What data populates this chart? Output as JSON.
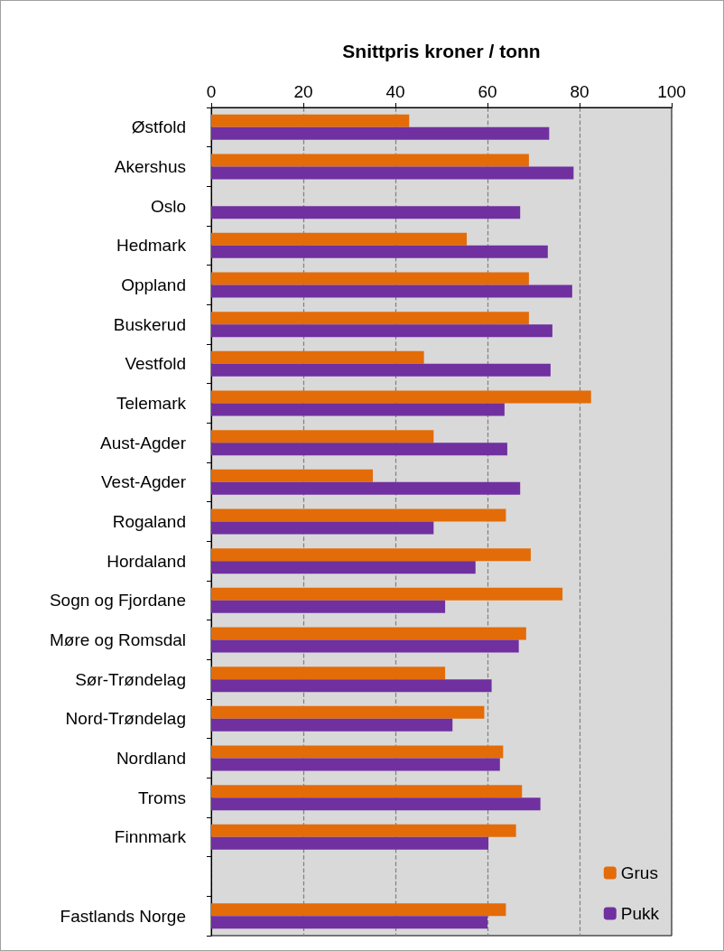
{
  "chart_data": {
    "type": "bar",
    "orientation": "horizontal",
    "xlabel": "Snittpris kroner / tonn",
    "categories": [
      "Østfold",
      "Akershus",
      "Oslo",
      "Hedmark",
      "Oppland",
      "Buskerud",
      "Vestfold",
      "Telemark",
      "Aust-Agder",
      "Vest-Agder",
      "Rogaland",
      "Hordaland",
      "Sogn og Fjordane",
      "Møre og Romsdal",
      "Sør-Trøndelag",
      "Nord-Trøndelag",
      "Nordland",
      "Troms",
      "Finnmark",
      null,
      "Fastlands Norge"
    ],
    "series": [
      {
        "name": "Grus",
        "color": "#e36c09",
        "values": [
          43.0,
          69.0,
          null,
          55.5,
          69.0,
          69.0,
          46.2,
          82.5,
          48.3,
          35.1,
          64.0,
          69.4,
          76.3,
          68.4,
          50.8,
          59.3,
          63.4,
          67.5,
          66.2,
          null,
          64.0
        ]
      },
      {
        "name": "Pukk",
        "color": "#7030a0",
        "values": [
          73.4,
          78.7,
          67.1,
          73.1,
          78.4,
          74.1,
          73.7,
          63.7,
          64.3,
          67.1,
          48.3,
          57.4,
          50.8,
          66.8,
          60.9,
          52.4,
          62.7,
          71.5,
          60.2,
          null,
          60.0
        ]
      }
    ],
    "xlim": [
      0,
      100
    ],
    "xticks": [
      0,
      20,
      40,
      60,
      80,
      100
    ],
    "grid": "x",
    "legend": "bottom right"
  }
}
